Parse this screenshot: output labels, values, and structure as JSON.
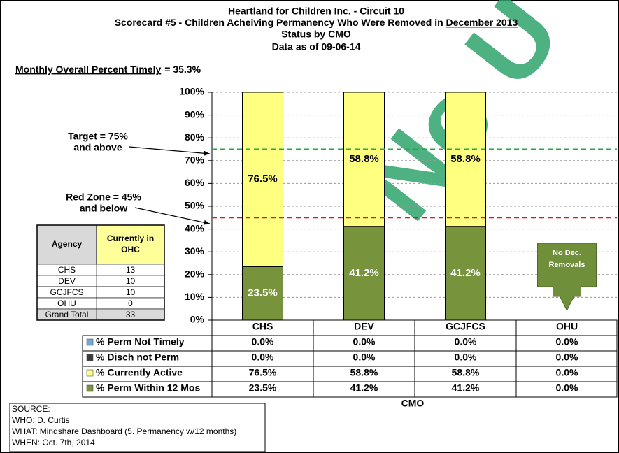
{
  "chart_data": {
    "type": "stacked_bar",
    "title_lines": [
      "Heartland for Children Inc. - Circuit 10",
      "Status by CMO",
      "Data as of 09-06-14"
    ],
    "title_line2_prefix": "Scorecard #5 - Children Acheiving Permanency Who Were Removed in",
    "title_line2_underlined": "December  2013",
    "summary_label": "Monthly Overall Percent Timely",
    "summary_text": "=  35.3%",
    "watermark": "No U",
    "x_label": "CMO",
    "categories": [
      "CHS",
      "DEV",
      "GCJFCS",
      "OHU"
    ],
    "series": [
      {
        "name": "% Perm Not Timely",
        "color": "#6fa8dc",
        "values": [
          0,
          0,
          0,
          0
        ],
        "value_labels": [
          "0.0%",
          "0.0%",
          "0.0%",
          "0.0%"
        ]
      },
      {
        "name": "% Disch not Perm",
        "color": "#3a3a3a",
        "values": [
          0,
          0,
          0,
          0
        ],
        "value_labels": [
          "0.0%",
          "0.0%",
          "0.0%",
          "0.0%"
        ]
      },
      {
        "name": "% Currently Active",
        "color": "#ffff80",
        "values": [
          76.5,
          58.8,
          58.8,
          0
        ],
        "value_labels": [
          "76.5%",
          "58.8%",
          "58.8%",
          "0.0%"
        ]
      },
      {
        "name": "% Perm Within 12 Mos",
        "color": "#77933c",
        "values": [
          23.5,
          41.2,
          41.2,
          0
        ],
        "value_labels": [
          "23.5%",
          "41.2%",
          "41.2%",
          "0.0%"
        ]
      }
    ],
    "ylim": [
      0,
      100
    ],
    "yticks": [
      {
        "value": 0,
        "label": "0%"
      },
      {
        "value": 10,
        "label": "10%"
      },
      {
        "value": 20,
        "label": "20%"
      },
      {
        "value": 30,
        "label": "30%"
      },
      {
        "value": 40,
        "label": "40%"
      },
      {
        "value": 50,
        "label": "50%"
      },
      {
        "value": 60,
        "label": "60%"
      },
      {
        "value": 70,
        "label": "70%"
      },
      {
        "value": 80,
        "label": "80%"
      },
      {
        "value": 90,
        "label": "90%"
      },
      {
        "value": 100,
        "label": "100%"
      }
    ],
    "grid": true,
    "reference_lines": [
      {
        "value": 75,
        "color": "#22aa44",
        "label_lines": [
          "Target = 75%",
          "and above"
        ]
      },
      {
        "value": 45,
        "color": "#ee1111",
        "label_lines": [
          "Red Zone = 45%",
          "and below"
        ]
      }
    ],
    "callout_lines": [
      "No Dec.",
      "Removals"
    ],
    "side_table": {
      "header_agency": "Agency",
      "header_count_lines": [
        "Currently in",
        "OHC"
      ],
      "rows": [
        [
          "CHS",
          13
        ],
        [
          "DEV",
          10
        ],
        [
          "GCJFCS",
          10
        ],
        [
          "OHU",
          0
        ],
        [
          "Grand Total",
          33
        ]
      ]
    },
    "source_lines": [
      "SOURCE:",
      "WHO:  D. Curtis",
      "WHAT: Mindshare Dashboard (5. Permanency w/12 months)",
      "WHEN: Oct. 7th, 2014"
    ]
  }
}
